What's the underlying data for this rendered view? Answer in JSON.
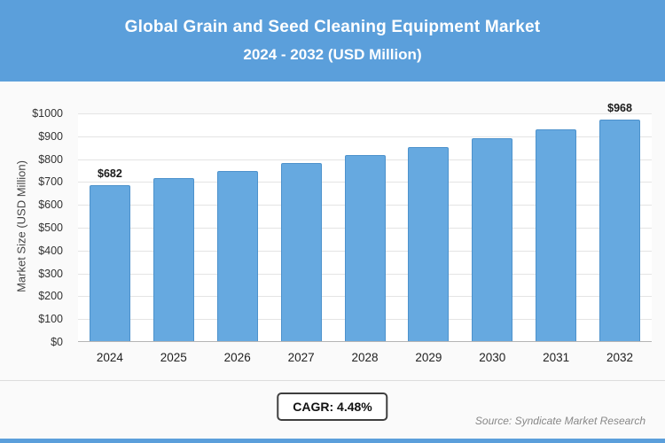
{
  "header": {
    "title_line1": "Global Grain and Seed Cleaning Equipment Market",
    "title_line2": "2024 - 2032 (USD Million)"
  },
  "chart_data": {
    "type": "bar",
    "title": "Global Grain and Seed Cleaning Equipment Market 2024 - 2032 (USD Million)",
    "xlabel": "",
    "ylabel": "Market Size (USD Million)",
    "ylim": [
      0,
      1000
    ],
    "ytick_step": 100,
    "ytick_prefix": "$",
    "grid": true,
    "legend_position": "none",
    "categories": [
      "2024",
      "2025",
      "2026",
      "2027",
      "2028",
      "2029",
      "2030",
      "2031",
      "2032"
    ],
    "values": [
      682,
      712,
      744,
      778,
      813,
      849,
      887,
      926,
      968
    ],
    "data_labels": [
      "$682",
      null,
      null,
      null,
      null,
      null,
      null,
      null,
      "$968"
    ]
  },
  "footer": {
    "cagr_label": "CAGR: 4.48%",
    "source": "Source: Syndicate Market Research"
  },
  "colors": {
    "header_bg": "#5b9fdb",
    "bar_fill": "#66a9e0",
    "bar_border": "#4d92cc",
    "bottom_strip": "#5b9fdb"
  }
}
